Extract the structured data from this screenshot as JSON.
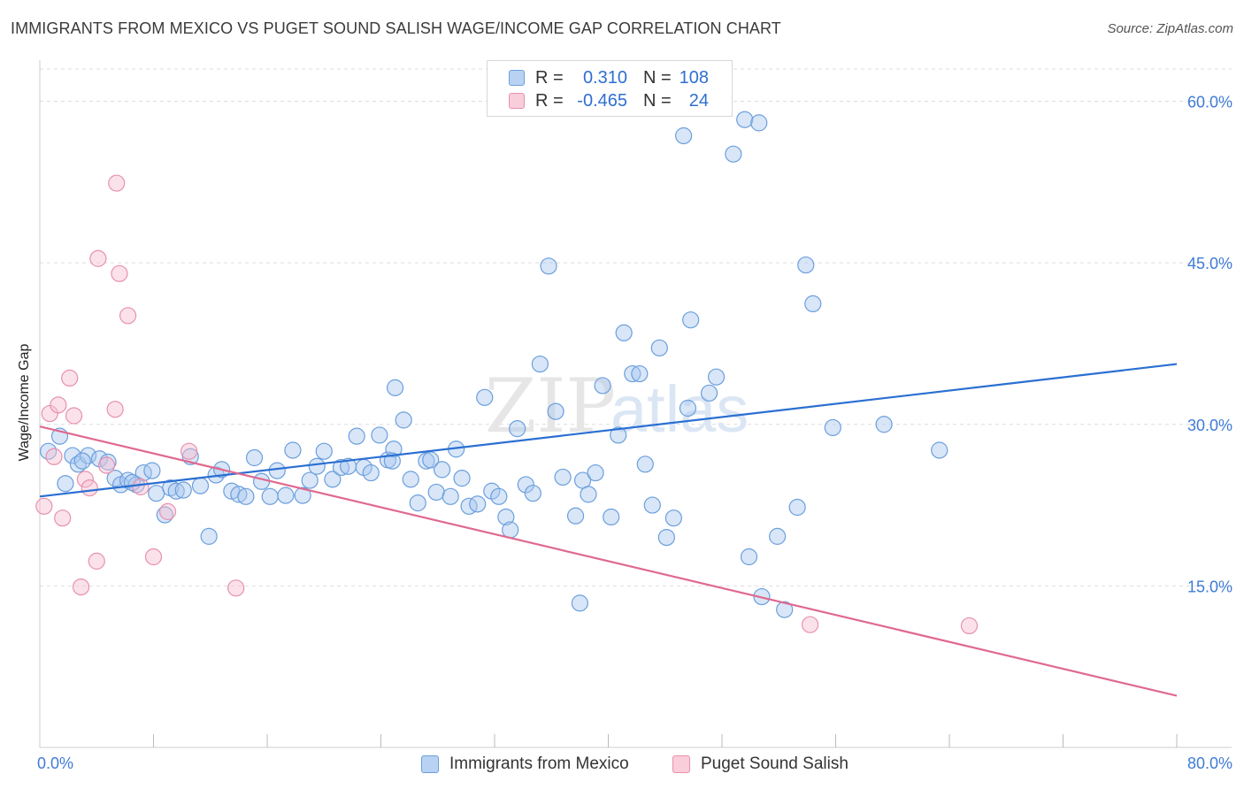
{
  "header": {
    "title": "IMMIGRANTS FROM MEXICO VS PUGET SOUND SALISH WAGE/INCOME GAP CORRELATION CHART",
    "source": "Source: ZipAtlas.com"
  },
  "watermark": {
    "part1": "ZIP",
    "part2": "atlas"
  },
  "legend_stats": [
    {
      "r_label": "R =",
      "r_value": "0.310",
      "n_label": "N =",
      "n_value": "108"
    },
    {
      "r_label": "R =",
      "r_value": "-0.465",
      "n_label": "N =",
      "n_value": "24"
    }
  ],
  "colors": {
    "mexico_fill": "#a9c8f0",
    "mexico_stroke": "#6b9fdc",
    "mexico_line": "#2a6fd2",
    "salish_fill": "#f7bfd0",
    "salish_stroke": "#e890ad",
    "salish_line": "#e0698f",
    "tick_label": "#3f7bd6",
    "grid": "#dddddd"
  },
  "chart_data": {
    "type": "scatter",
    "title": "IMMIGRANTS FROM MEXICO VS PUGET SOUND SALISH WAGE/INCOME GAP CORRELATION CHART",
    "xlabel": "",
    "ylabel": "Wage/Income Gap",
    "xlim": [
      0,
      80
    ],
    "ylim": [
      0,
      63
    ],
    "x_tick_labels": [
      "0.0%",
      "80.0%"
    ],
    "y_ticks": [
      15,
      30,
      45,
      60
    ],
    "y_tick_labels": [
      "15.0%",
      "30.0%",
      "45.0%",
      "60.0%"
    ],
    "grid": true,
    "legend_position": "bottom",
    "series": [
      {
        "name": "Immigrants from Mexico",
        "r": 0.31,
        "n": 108,
        "trend": {
          "x": [
            0,
            80
          ],
          "y": [
            23.3,
            35.6
          ]
        },
        "points": [
          [
            0.6,
            27.5
          ],
          [
            1.4,
            28.9
          ],
          [
            1.8,
            24.5
          ],
          [
            2.3,
            27.1
          ],
          [
            2.7,
            26.3
          ],
          [
            3.4,
            27.1
          ],
          [
            4.2,
            26.8
          ],
          [
            4.8,
            26.5
          ],
          [
            5.3,
            25.0
          ],
          [
            5.7,
            24.4
          ],
          [
            6.2,
            24.8
          ],
          [
            6.8,
            24.4
          ],
          [
            7.3,
            25.5
          ],
          [
            7.9,
            25.7
          ],
          [
            8.2,
            23.6
          ],
          [
            8.8,
            21.6
          ],
          [
            9.2,
            24.1
          ],
          [
            9.6,
            23.8
          ],
          [
            10.1,
            23.9
          ],
          [
            10.6,
            27.0
          ],
          [
            11.3,
            24.3
          ],
          [
            11.9,
            19.6
          ],
          [
            12.4,
            25.3
          ],
          [
            12.8,
            25.8
          ],
          [
            13.5,
            23.8
          ],
          [
            14.0,
            23.5
          ],
          [
            14.5,
            23.3
          ],
          [
            15.1,
            26.9
          ],
          [
            15.6,
            24.7
          ],
          [
            16.2,
            23.3
          ],
          [
            16.7,
            25.7
          ],
          [
            17.3,
            23.4
          ],
          [
            17.8,
            27.6
          ],
          [
            18.5,
            23.4
          ],
          [
            19.0,
            24.8
          ],
          [
            19.5,
            26.1
          ],
          [
            20.0,
            27.5
          ],
          [
            20.6,
            24.9
          ],
          [
            21.2,
            26.0
          ],
          [
            21.7,
            26.1
          ],
          [
            22.3,
            28.9
          ],
          [
            22.8,
            26.0
          ],
          [
            23.3,
            25.5
          ],
          [
            23.9,
            29.0
          ],
          [
            24.5,
            26.7
          ],
          [
            24.9,
            27.7
          ],
          [
            25.0,
            33.4
          ],
          [
            25.6,
            30.4
          ],
          [
            26.1,
            24.9
          ],
          [
            26.6,
            22.7
          ],
          [
            27.2,
            26.6
          ],
          [
            27.5,
            26.7
          ],
          [
            27.9,
            23.7
          ],
          [
            28.3,
            25.8
          ],
          [
            28.9,
            23.3
          ],
          [
            29.3,
            27.7
          ],
          [
            29.7,
            25.0
          ],
          [
            30.2,
            22.4
          ],
          [
            30.8,
            22.6
          ],
          [
            31.3,
            32.5
          ],
          [
            31.8,
            23.8
          ],
          [
            32.3,
            23.3
          ],
          [
            32.8,
            21.4
          ],
          [
            33.1,
            20.2
          ],
          [
            33.6,
            29.6
          ],
          [
            34.2,
            24.4
          ],
          [
            34.7,
            23.6
          ],
          [
            35.2,
            35.6
          ],
          [
            35.8,
            44.7
          ],
          [
            36.3,
            31.2
          ],
          [
            36.8,
            25.1
          ],
          [
            37.7,
            21.5
          ],
          [
            38.2,
            24.8
          ],
          [
            38.6,
            23.5
          ],
          [
            39.1,
            25.5
          ],
          [
            39.6,
            33.6
          ],
          [
            40.2,
            21.4
          ],
          [
            40.7,
            29.0
          ],
          [
            41.1,
            38.5
          ],
          [
            41.7,
            34.7
          ],
          [
            42.2,
            34.7
          ],
          [
            42.6,
            26.3
          ],
          [
            43.1,
            22.5
          ],
          [
            43.6,
            37.1
          ],
          [
            44.1,
            19.5
          ],
          [
            44.6,
            21.3
          ],
          [
            45.3,
            56.8
          ],
          [
            45.6,
            31.5
          ],
          [
            45.8,
            39.7
          ],
          [
            47.1,
            32.9
          ],
          [
            47.6,
            34.4
          ],
          [
            48.8,
            55.1
          ],
          [
            49.6,
            58.3
          ],
          [
            50.6,
            58.0
          ],
          [
            49.9,
            17.7
          ],
          [
            50.8,
            14.0
          ],
          [
            51.9,
            19.6
          ],
          [
            52.4,
            12.8
          ],
          [
            53.3,
            22.3
          ],
          [
            53.9,
            44.8
          ],
          [
            54.4,
            41.2
          ],
          [
            55.8,
            29.7
          ],
          [
            59.4,
            30.0
          ],
          [
            63.3,
            27.6
          ],
          [
            38.0,
            13.4
          ],
          [
            24.8,
            26.6
          ],
          [
            6.5,
            24.6
          ],
          [
            3.0,
            26.6
          ]
        ]
      },
      {
        "name": "Puget Sound Salish",
        "r": -0.465,
        "n": 24,
        "trend": {
          "x": [
            0,
            80
          ],
          "y": [
            29.8,
            4.8
          ]
        },
        "points": [
          [
            0.3,
            22.4
          ],
          [
            0.7,
            31.0
          ],
          [
            1.0,
            27.0
          ],
          [
            1.3,
            31.8
          ],
          [
            1.6,
            21.3
          ],
          [
            2.1,
            34.3
          ],
          [
            2.4,
            30.8
          ],
          [
            2.9,
            14.9
          ],
          [
            3.2,
            24.9
          ],
          [
            3.5,
            24.1
          ],
          [
            4.0,
            17.3
          ],
          [
            4.1,
            45.4
          ],
          [
            4.7,
            26.2
          ],
          [
            5.3,
            31.4
          ],
          [
            5.4,
            52.4
          ],
          [
            5.6,
            44.0
          ],
          [
            6.2,
            40.1
          ],
          [
            7.1,
            24.2
          ],
          [
            8.0,
            17.7
          ],
          [
            9.0,
            21.9
          ],
          [
            10.5,
            27.5
          ],
          [
            13.8,
            14.8
          ],
          [
            54.2,
            11.4
          ],
          [
            65.4,
            11.3
          ]
        ]
      }
    ]
  }
}
